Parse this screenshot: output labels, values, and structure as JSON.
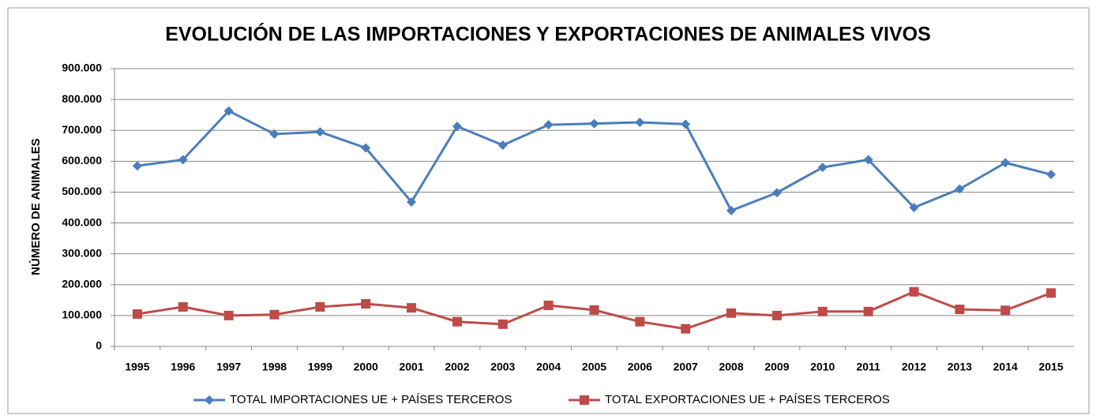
{
  "chart_data": {
    "type": "line",
    "title": "EVOLUCIÓN DE LAS IMPORTACIONES Y EXPORTACIONES DE ANIMALES VIVOS",
    "y_label": "NÚMERO DE ANIMALES",
    "categories": [
      "1995",
      "1996",
      "1997",
      "1998",
      "1999",
      "2000",
      "2001",
      "2002",
      "2003",
      "2004",
      "2005",
      "2006",
      "2007",
      "2008",
      "2009",
      "2010",
      "2011",
      "2012",
      "2013",
      "2014",
      "2015"
    ],
    "series": [
      {
        "name": "TOTAL IMPORTACIONES UE + PAÍSES TERCEROS",
        "color": "#4a7ebb",
        "marker": "diamond",
        "values": [
          585000,
          605000,
          763000,
          688000,
          695000,
          643000,
          468000,
          713000,
          652000,
          718000,
          722000,
          726000,
          720000,
          440000,
          498000,
          580000,
          605000,
          450000,
          510000,
          595000,
          557000
        ]
      },
      {
        "name": "TOTAL EXPORTACIONES UE + PAÍSES TERCEROS",
        "color": "#be4b48",
        "marker": "square",
        "values": [
          105000,
          128000,
          100000,
          103000,
          128000,
          138000,
          125000,
          80000,
          72000,
          133000,
          118000,
          80000,
          57000,
          108000,
          100000,
          113000,
          113000,
          177000,
          120000,
          117000,
          173000
        ]
      }
    ],
    "ylim": [
      0,
      900000
    ],
    "yticks": [
      0,
      {
        "value": 100000,
        "label": "100.000"
      },
      {
        "value": 200000,
        "label": "200.000"
      },
      {
        "value": 300000,
        "label": "300.000"
      },
      {
        "value": 400000,
        "label": "400.000"
      },
      {
        "value": 500000,
        "label": "500.000"
      },
      {
        "value": 600000,
        "label": "600.000"
      },
      {
        "value": 700000,
        "label": "700.000"
      },
      {
        "value": 800000,
        "label": "800.000"
      },
      {
        "value": 900000,
        "label": "900.000"
      }
    ],
    "grid": true,
    "legend": "bottom"
  }
}
